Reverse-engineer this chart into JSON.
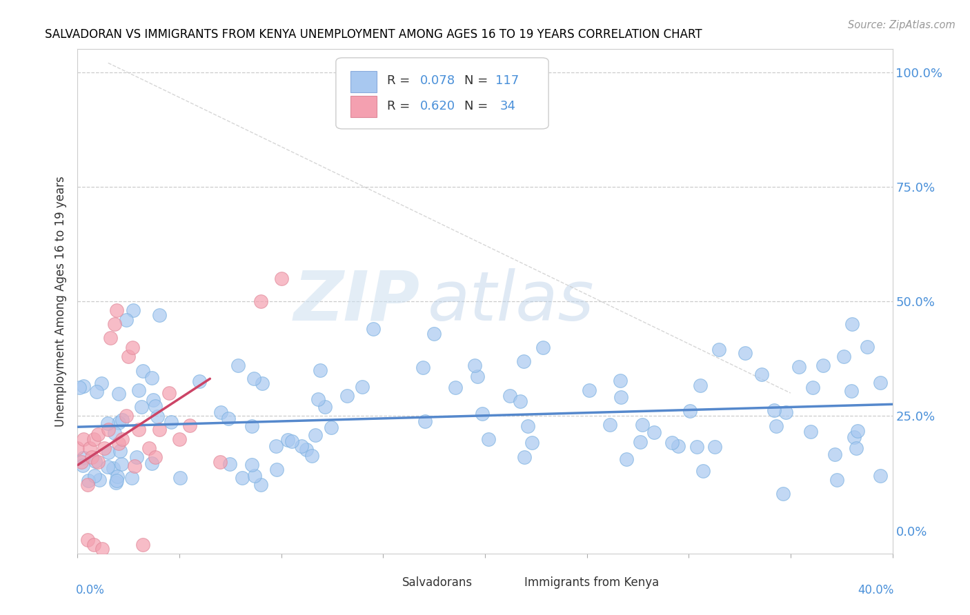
{
  "title": "SALVADORAN VS IMMIGRANTS FROM KENYA UNEMPLOYMENT AMONG AGES 16 TO 19 YEARS CORRELATION CHART",
  "source": "Source: ZipAtlas.com",
  "ylabel": "Unemployment Among Ages 16 to 19 years",
  "watermark_zip": "ZIP",
  "watermark_atlas": "atlas",
  "xlim": [
    0.0,
    0.4
  ],
  "ylim": [
    -0.05,
    1.05
  ],
  "yticks": [
    0.0,
    0.25,
    0.5,
    0.75,
    1.0
  ],
  "right_ytick_labels": [
    "0.0%",
    "25.0%",
    "50.0%",
    "75.0%",
    "100.0%"
  ],
  "color_blue": "#a8c8f0",
  "color_pink": "#f4a0b0",
  "color_blue_text": "#4a90d9",
  "color_trend_blue": "#5588cc",
  "color_trend_pink": "#cc4466",
  "color_dashed": "#cccccc",
  "sal_R": 0.078,
  "sal_N": 117,
  "ken_R": 0.62,
  "ken_N": 34
}
